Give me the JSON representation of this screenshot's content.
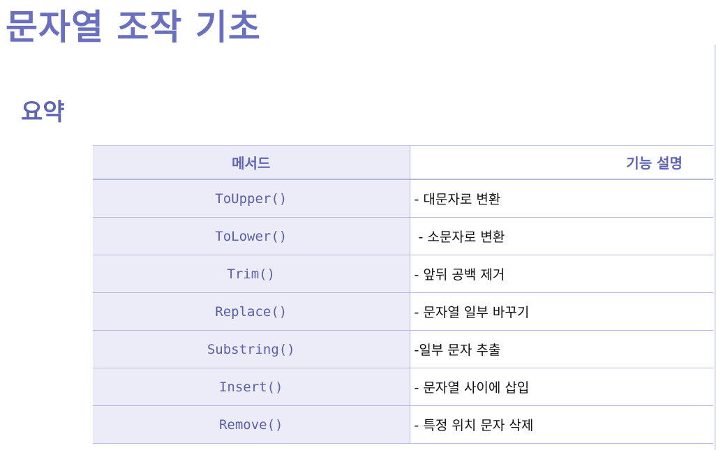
{
  "slide": {
    "title": "문자열 조작 기초",
    "section_title": "요약"
  },
  "colors": {
    "accent": "#6a6fbf",
    "table_shade": "#ececf8",
    "border": "#b5b8de"
  },
  "table": {
    "headers": {
      "method": "메서드",
      "description": "기능 설명"
    },
    "rows": [
      {
        "method": "ToUpper()",
        "description": "- 대문자로 변환"
      },
      {
        "method": "ToLower()",
        "description": " - 소문자로 변환"
      },
      {
        "method": "Trim()",
        "description": "- 앞뒤 공백 제거"
      },
      {
        "method": "Replace()",
        "description": "- 문자열 일부 바꾸기"
      },
      {
        "method": "Substring()",
        "description": "-일부 문자 추출"
      },
      {
        "method": "Insert()",
        "description": "- 문자열 사이에 삽입"
      },
      {
        "method": "Remove()",
        "description": "- 특정 위치 문자 삭제"
      }
    ]
  }
}
